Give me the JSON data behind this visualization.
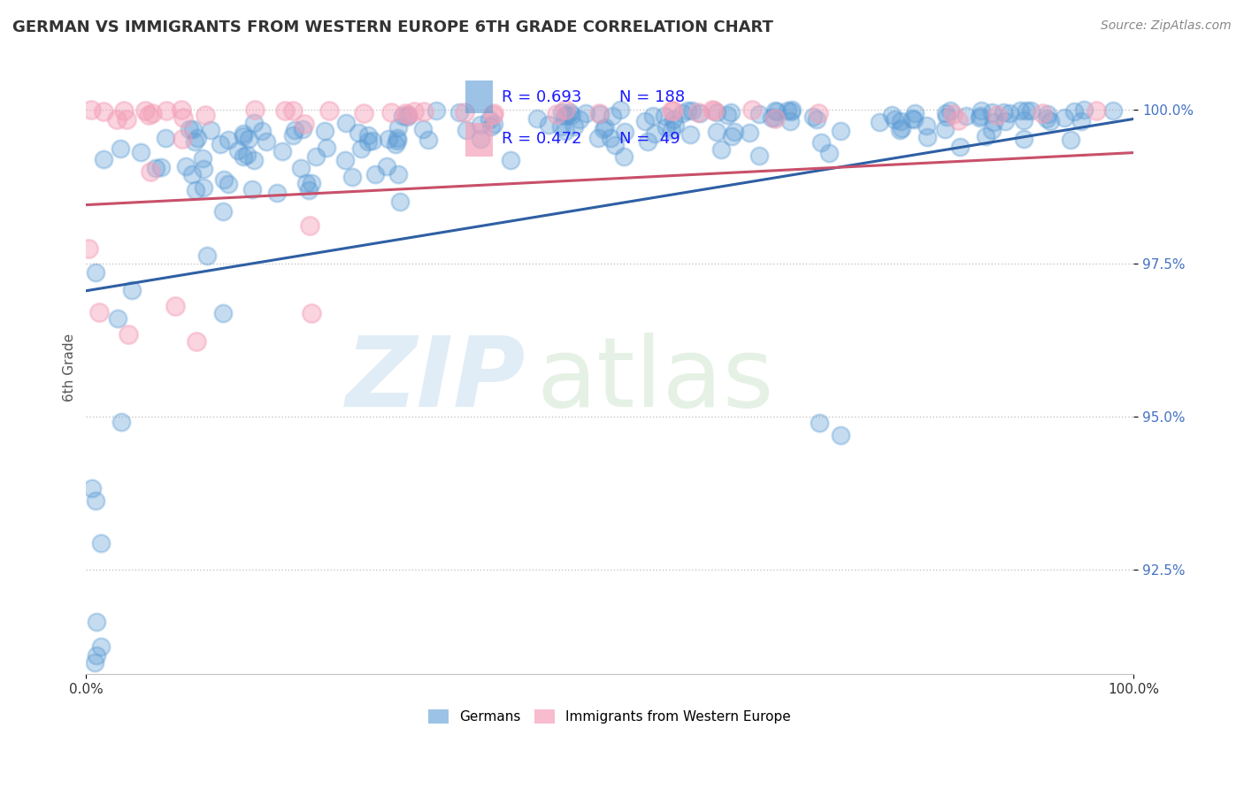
{
  "title": "GERMAN VS IMMIGRANTS FROM WESTERN EUROPE 6TH GRADE CORRELATION CHART",
  "source": "Source: ZipAtlas.com",
  "ylabel": "6th Grade",
  "xlim": [
    0.0,
    1.0
  ],
  "ylim": [
    0.908,
    1.008
  ],
  "yticks": [
    0.925,
    0.95,
    0.975,
    1.0
  ],
  "ytick_labels": [
    "92.5%",
    "95.0%",
    "97.5%",
    "100.0%"
  ],
  "xticks": [
    0.0,
    1.0
  ],
  "xtick_labels": [
    "0.0%",
    "100.0%"
  ],
  "blue_R": 0.693,
  "blue_N": 188,
  "pink_R": 0.472,
  "pink_N": 49,
  "blue_color": "#5b9bd5",
  "pink_color": "#f4a0b8",
  "blue_line_color": "#2e5fa3",
  "pink_line_color": "#c8506a",
  "blue_trend_x": [
    0.0,
    1.0
  ],
  "blue_trend_y": [
    0.9705,
    0.9985
  ],
  "pink_trend_x": [
    0.0,
    1.0
  ],
  "pink_trend_y": [
    0.9845,
    0.993
  ],
  "legend_label_blue": "Germans",
  "legend_label_pink": "Immigrants from Western Europe",
  "watermark_zip": "ZIP",
  "watermark_atlas": "atlas",
  "background_color": "#ffffff",
  "title_fontsize": 13,
  "source_fontsize": 10,
  "axis_label_fontsize": 11,
  "tick_fontsize": 11,
  "legend_fontsize": 11,
  "annotation_color": "#1a1aff",
  "annotation_fontsize": 13
}
